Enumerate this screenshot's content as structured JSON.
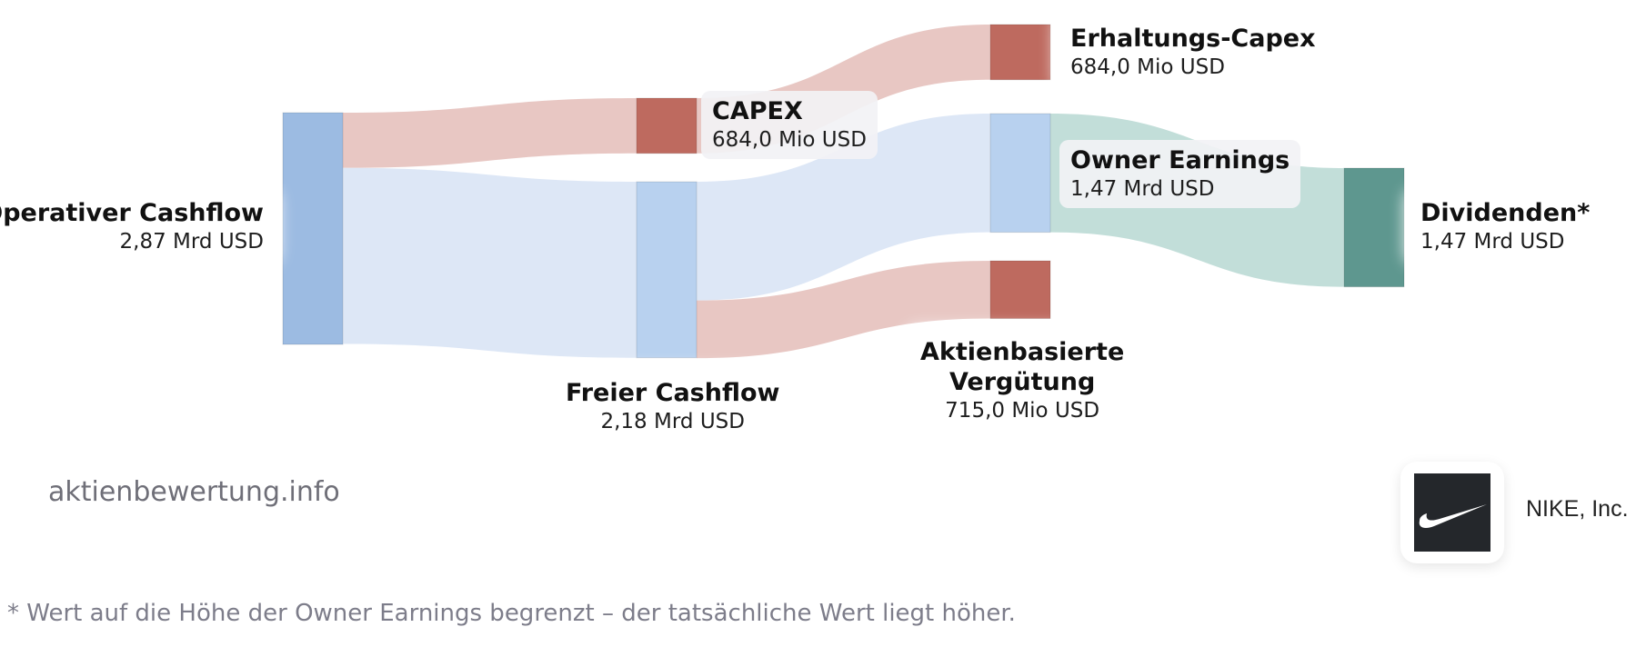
{
  "chart_data": {
    "type": "sankey",
    "title": "",
    "nodes": [
      {
        "id": "op",
        "name": "Operativer Cashflow",
        "value_label": "2,87 Mrd USD",
        "value": 2870,
        "color": "#9cbbe2"
      },
      {
        "id": "capex",
        "name": "CAPEX",
        "value_label": "684,0 Mio USD",
        "value": 684,
        "color": "#be6a5f"
      },
      {
        "id": "fcf",
        "name": "Freier Cashflow",
        "value_label": "2,18 Mrd USD",
        "value": 2180,
        "color": "#b8d1ef"
      },
      {
        "id": "erh",
        "name": "Erhaltungs-Capex",
        "value_label": "684,0 Mio USD",
        "value": 684,
        "color": "#be6a5f"
      },
      {
        "id": "own",
        "name": "Owner Earnings",
        "value_label": "1,47 Mrd USD",
        "value": 1470,
        "color": "#b8d1ef"
      },
      {
        "id": "akt",
        "name_lines": [
          "Aktienbasierte",
          "Vergütung"
        ],
        "value_label": "715,0 Mio USD",
        "value": 715,
        "color": "#be6a5f"
      },
      {
        "id": "div",
        "name": "Dividenden*",
        "value_label": "1,47 Mrd USD",
        "value": 1470,
        "color": "#5e978f"
      }
    ],
    "links": [
      {
        "source": "op",
        "target": "capex",
        "value": 684,
        "color": "#e7c4c0"
      },
      {
        "source": "op",
        "target": "fcf",
        "value": 2180,
        "color": "#dbe6f6"
      },
      {
        "source": "capex",
        "target": "erh",
        "value": 684,
        "color": "#e7c4c0"
      },
      {
        "source": "fcf",
        "target": "own",
        "value": 1470,
        "color": "#dbe6f6"
      },
      {
        "source": "fcf",
        "target": "akt",
        "value": 715,
        "color": "#e7c4c0"
      },
      {
        "source": "own",
        "target": "div",
        "value": 1470,
        "color": "#bfdcd7"
      }
    ]
  },
  "watermark": "aktienbewertung.info",
  "company": {
    "name": "NIKE, Inc.",
    "logo_icon": "nike-swoosh-icon",
    "logo_bg": "#24272b"
  },
  "footnote": "* Wert auf die Höhe der Owner Earnings begrenzt – der tatsächliche Wert liegt höher."
}
